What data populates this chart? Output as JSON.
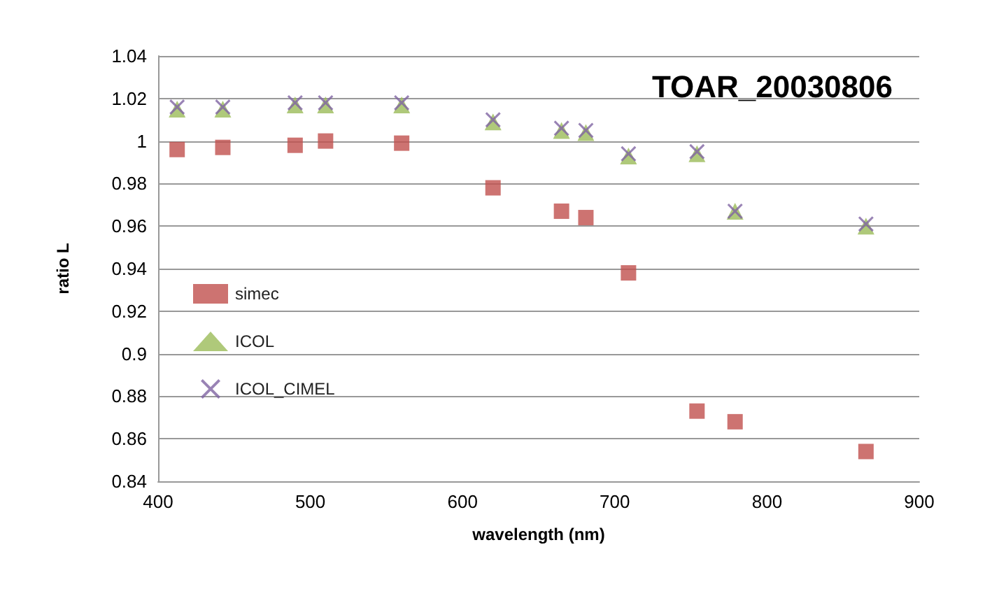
{
  "chart_data": {
    "type": "scatter",
    "title": "TOAR_20030806",
    "xlabel": "wavelength (nm)",
    "ylabel": "ratio L",
    "x": [
      412.5,
      442.5,
      490,
      510,
      560,
      620,
      665,
      681,
      709,
      754,
      779,
      865
    ],
    "series": [
      {
        "name": "simec",
        "color": "#c0504d",
        "marker": "square",
        "values": [
          0.996,
          0.997,
          0.998,
          1.0,
          0.999,
          0.978,
          0.967,
          0.964,
          0.938,
          0.873,
          0.868,
          0.854
        ]
      },
      {
        "name": "ICOL",
        "color": "#9bbb59",
        "marker": "triangle",
        "values": [
          1.015,
          1.015,
          1.017,
          1.017,
          1.017,
          1.009,
          1.005,
          1.004,
          0.993,
          0.994,
          0.967,
          0.96
        ]
      },
      {
        "name": "ICOL_CIMEL",
        "color": "#8064a2",
        "marker": "cross",
        "values": [
          1.016,
          1.016,
          1.018,
          1.018,
          1.018,
          1.01,
          1.006,
          1.005,
          0.994,
          0.995,
          0.967,
          0.961
        ]
      }
    ],
    "xlim": [
      400,
      900
    ],
    "xticks": [
      400,
      500,
      600,
      700,
      800,
      900
    ],
    "ylim": [
      0.84,
      1.04
    ],
    "yticks": [
      0.84,
      0.86,
      0.88,
      0.9,
      0.92,
      0.94,
      0.96,
      0.98,
      1,
      1.02,
      1.04
    ],
    "grid": "y",
    "legend": "left"
  }
}
